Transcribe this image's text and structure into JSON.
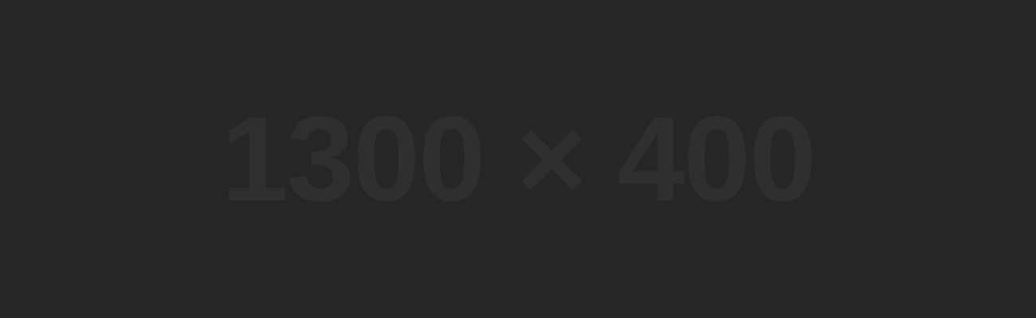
{
  "placeholder": {
    "dimensions_text": "1300 × 400",
    "background_color": "#262626",
    "text_color": "#2f2f2f"
  }
}
